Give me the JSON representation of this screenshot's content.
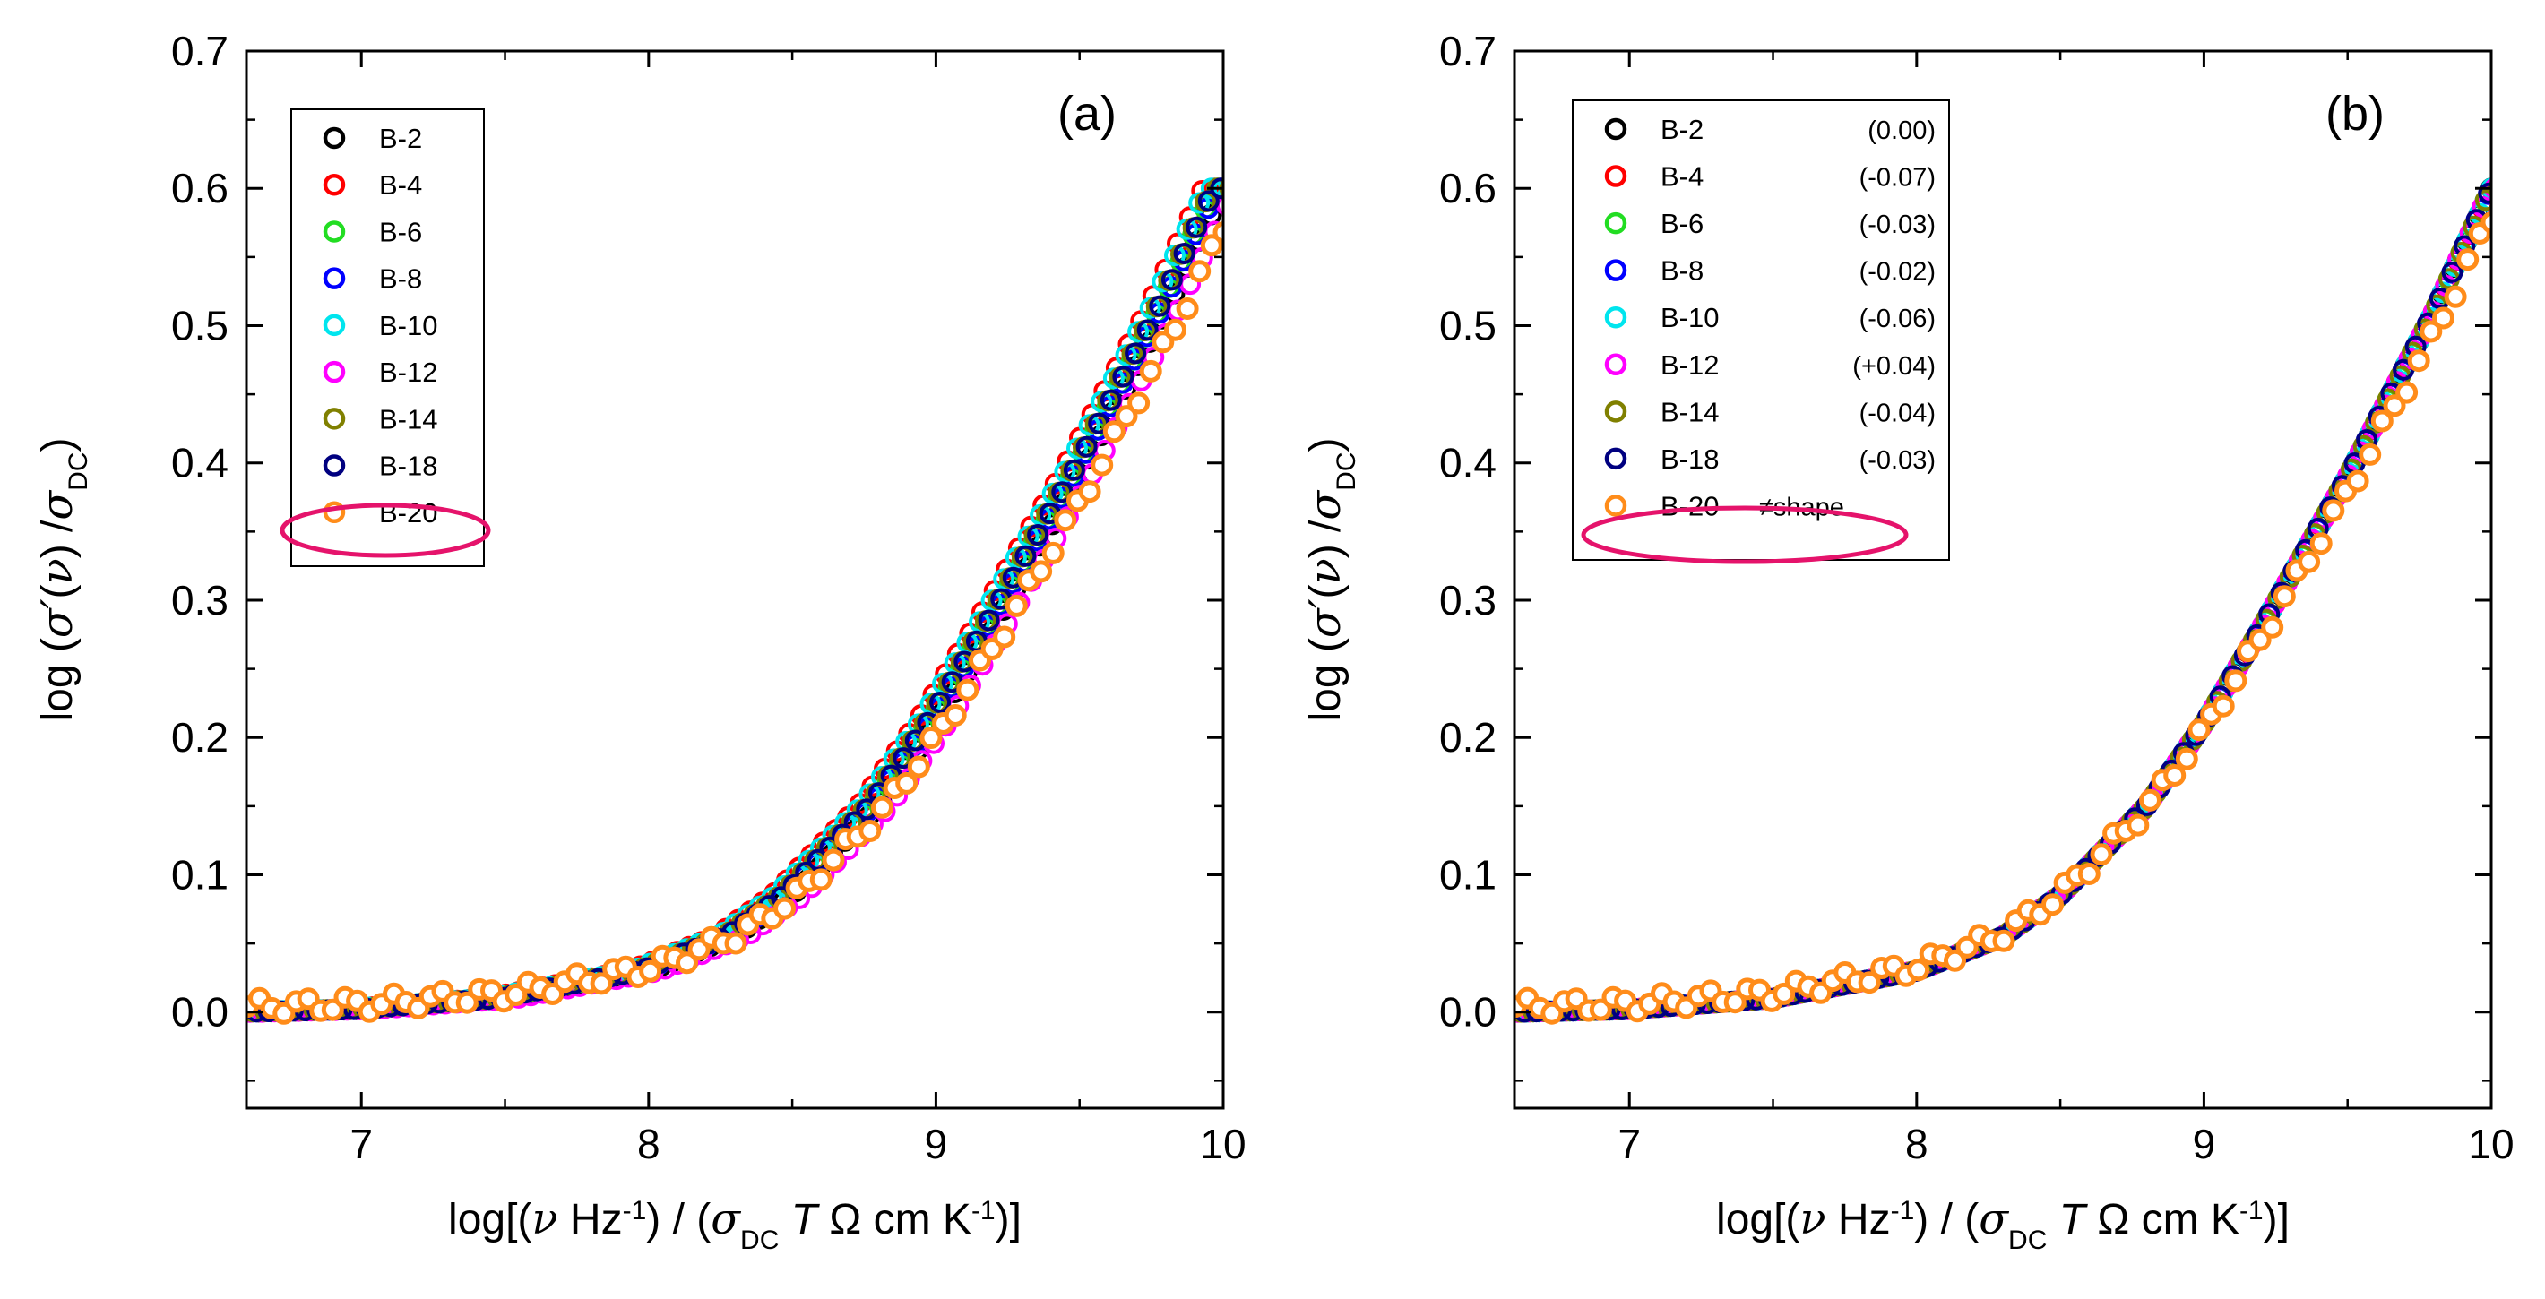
{
  "chart_data": [
    {
      "panel": "a",
      "type": "scatter",
      "panel_label": "(a)",
      "xlabel": "log[(ν Hz⁻¹) / (σDC T Ω cm K⁻¹)]",
      "ylabel": "log (σ′(ν) / σDC)",
      "xlim": [
        6.6,
        10.0
      ],
      "ylim": [
        -0.07,
        0.7
      ],
      "xticks": [
        7,
        8,
        9,
        10
      ],
      "yticks": [
        0.0,
        0.1,
        0.2,
        0.3,
        0.4,
        0.5,
        0.6,
        0.7
      ],
      "xtick_labels": [
        "7",
        "8",
        "9",
        "10"
      ],
      "ytick_labels": [
        "0.0",
        "0.1",
        "0.2",
        "0.3",
        "0.4",
        "0.5",
        "0.6",
        "0.7"
      ],
      "legend_position": "top-left",
      "highlighted_entry": "B-20",
      "series": [
        {
          "name": "B-2",
          "note": "",
          "color": "#000000",
          "x_shift": 0.0,
          "y_scale": 1.0
        },
        {
          "name": "B-4",
          "note": "",
          "color": "#ff0000",
          "x_shift": 0.07,
          "y_scale": 1.0
        },
        {
          "name": "B-6",
          "note": "",
          "color": "#22dd22",
          "x_shift": 0.03,
          "y_scale": 1.0
        },
        {
          "name": "B-8",
          "note": "",
          "color": "#0000ff",
          "x_shift": 0.02,
          "y_scale": 1.0
        },
        {
          "name": "B-10",
          "note": "",
          "color": "#00e5ee",
          "x_shift": 0.06,
          "y_scale": 1.0
        },
        {
          "name": "B-12",
          "note": "",
          "color": "#ff00ff",
          "x_shift": -0.04,
          "y_scale": 1.0
        },
        {
          "name": "B-14",
          "note": "",
          "color": "#808000",
          "x_shift": 0.04,
          "y_scale": 1.0
        },
        {
          "name": "B-18",
          "note": "",
          "color": "#000080",
          "x_shift": 0.03,
          "y_scale": 1.0
        },
        {
          "name": "B-20",
          "note": "",
          "color": "#ff8c1a",
          "x_shift": -0.02,
          "y_scale": 0.96,
          "filled_white": true
        }
      ]
    },
    {
      "panel": "b",
      "type": "scatter",
      "panel_label": "(b)",
      "xlabel": "log[(ν Hz⁻¹) / (σDC T Ω cm K⁻¹)]",
      "ylabel": "log (σ′(ν) / σDC)",
      "xlim": [
        6.6,
        10.0
      ],
      "ylim": [
        -0.07,
        0.7
      ],
      "xticks": [
        7,
        8,
        9,
        10
      ],
      "yticks": [
        0.0,
        0.1,
        0.2,
        0.3,
        0.4,
        0.5,
        0.6,
        0.7
      ],
      "xtick_labels": [
        "7",
        "8",
        "9",
        "10"
      ],
      "ytick_labels": [
        "0.0",
        "0.1",
        "0.2",
        "0.3",
        "0.4",
        "0.5",
        "0.6",
        "0.7"
      ],
      "legend_position": "top-left",
      "highlighted_entry": "B-20",
      "series": [
        {
          "name": "B-2",
          "note": "(0.00)",
          "color": "#000000",
          "x_shift": 0.0,
          "y_scale": 1.0
        },
        {
          "name": "B-4",
          "note": "(-0.07)",
          "color": "#ff0000",
          "x_shift": 0.0,
          "y_scale": 1.0
        },
        {
          "name": "B-6",
          "note": "(-0.03)",
          "color": "#22dd22",
          "x_shift": 0.0,
          "y_scale": 1.0
        },
        {
          "name": "B-8",
          "note": "(-0.02)",
          "color": "#0000ff",
          "x_shift": 0.0,
          "y_scale": 1.0
        },
        {
          "name": "B-10",
          "note": "(-0.06)",
          "color": "#00e5ee",
          "x_shift": 0.0,
          "y_scale": 1.0
        },
        {
          "name": "B-12",
          "note": "(+0.04)",
          "color": "#ff00ff",
          "x_shift": 0.0,
          "y_scale": 1.0
        },
        {
          "name": "B-14",
          "note": "(-0.04)",
          "color": "#808000",
          "x_shift": 0.0,
          "y_scale": 1.0
        },
        {
          "name": "B-18",
          "note": "(-0.03)",
          "color": "#000080",
          "x_shift": 0.0,
          "y_scale": 1.0
        },
        {
          "name": "B-20",
          "note": "≠shape",
          "color": "#ff8c1a",
          "x_shift": 0.0,
          "y_scale": 0.96,
          "filled_white": true
        }
      ]
    }
  ],
  "master_curve": {
    "x": [
      6.6,
      7.0,
      7.5,
      8.0,
      8.3,
      8.5,
      8.8,
      9.0,
      9.2,
      9.5,
      9.8,
      10.0
    ],
    "y": [
      0.0,
      0.002,
      0.01,
      0.03,
      0.055,
      0.085,
      0.15,
      0.21,
      0.28,
      0.39,
      0.51,
      0.6
    ]
  },
  "colors": {
    "highlight": "#e5136b"
  }
}
